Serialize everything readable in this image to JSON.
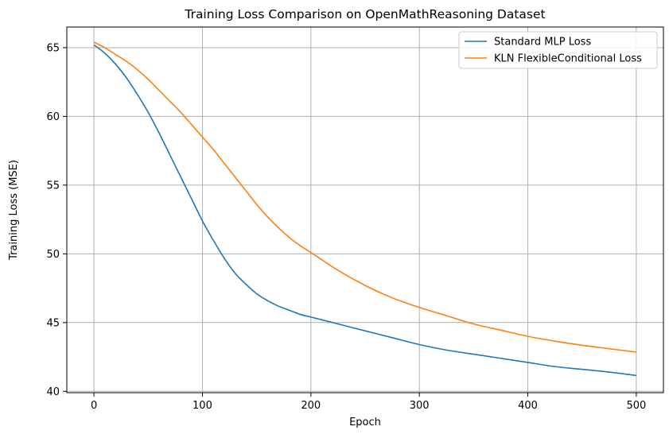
{
  "colors": {
    "series_1": "#1f77b4",
    "series_2": "#ff7f0e",
    "grid": "#b0b0b0",
    "axes": "#000000"
  },
  "chart_data": {
    "type": "line",
    "title": "Training Loss Comparison on OpenMathReasoning Dataset",
    "xlabel": "Epoch",
    "ylabel": "Training Loss (MSE)",
    "xlim": [
      -25,
      525
    ],
    "ylim": [
      39.9,
      66.5
    ],
    "xticks": [
      0,
      100,
      200,
      300,
      400,
      500
    ],
    "yticks": [
      40,
      45,
      50,
      55,
      60,
      65
    ],
    "grid": true,
    "legend_position": "top-right",
    "series": [
      {
        "name": "Standard MLP Loss",
        "color": "#1f77b4",
        "x": [
          0,
          10,
          20,
          30,
          40,
          50,
          60,
          70,
          80,
          90,
          100,
          110,
          120,
          130,
          140,
          150,
          160,
          170,
          180,
          190,
          200,
          225,
          250,
          275,
          300,
          325,
          350,
          375,
          400,
          425,
          450,
          475,
          500
        ],
        "y": [
          65.2,
          64.6,
          63.8,
          62.8,
          61.6,
          60.3,
          58.8,
          57.2,
          55.6,
          54.0,
          52.4,
          51.0,
          49.7,
          48.6,
          47.8,
          47.1,
          46.6,
          46.2,
          45.9,
          45.6,
          45.4,
          44.9,
          44.4,
          43.9,
          43.4,
          43.0,
          42.7,
          42.4,
          42.1,
          41.8,
          41.6,
          41.4,
          41.15
        ]
      },
      {
        "name": "KLN FlexibleConditional Loss",
        "color": "#ff7f0e",
        "x": [
          0,
          10,
          20,
          30,
          40,
          50,
          60,
          70,
          80,
          90,
          100,
          110,
          120,
          130,
          140,
          150,
          160,
          170,
          180,
          190,
          200,
          225,
          250,
          275,
          300,
          325,
          350,
          375,
          400,
          425,
          450,
          475,
          500
        ],
        "y": [
          65.4,
          65.0,
          64.5,
          64.0,
          63.4,
          62.7,
          61.9,
          61.1,
          60.3,
          59.4,
          58.5,
          57.6,
          56.6,
          55.6,
          54.6,
          53.6,
          52.7,
          51.9,
          51.2,
          50.6,
          50.1,
          48.8,
          47.7,
          46.8,
          46.1,
          45.5,
          44.9,
          44.45,
          44.0,
          43.65,
          43.35,
          43.1,
          42.85
        ]
      }
    ]
  }
}
